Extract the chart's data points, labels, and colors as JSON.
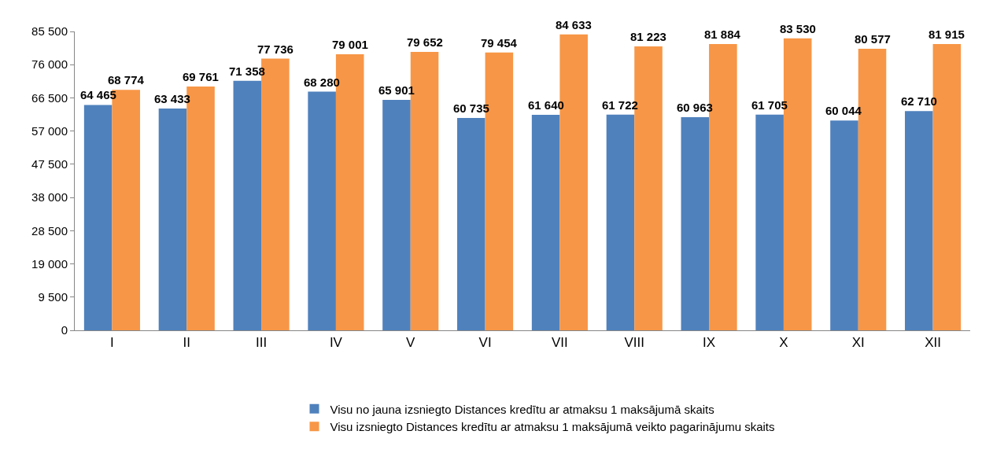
{
  "chart_data": {
    "type": "bar",
    "categories": [
      "I",
      "II",
      "III",
      "IV",
      "V",
      "VI",
      "VII",
      "VIII",
      "IX",
      "X",
      "XI",
      "XII"
    ],
    "series": [
      {
        "name": "Visu no jauna izsniegto Distances kredītu ar atmaksu 1 maksājumā skaits",
        "color": "#4f81bd",
        "values": [
          64465,
          63433,
          71358,
          68280,
          65901,
          60735,
          61640,
          61722,
          60963,
          61705,
          60044,
          62710
        ],
        "value_labels": [
          "64 465",
          "63 433",
          "71 358",
          "68 280",
          "65 901",
          "60 735",
          "61 640",
          "61 722",
          "60 963",
          "61 705",
          "60 044",
          "62 710"
        ]
      },
      {
        "name": "Visu izsniegto Distances kredītu ar atmaksu 1 maksājumā veikto pagarinājumu skaits",
        "color": "#f79646",
        "values": [
          68774,
          69761,
          77736,
          79001,
          79652,
          79454,
          84633,
          81223,
          81884,
          83530,
          80577,
          81915
        ],
        "value_labels": [
          "68 774",
          "69 761",
          "77 736",
          "79 001",
          "79 652",
          "79 454",
          "84 633",
          "81 223",
          "81 884",
          "83 530",
          "80 577",
          "81 915"
        ]
      }
    ],
    "ylim": [
      0,
      85500
    ],
    "yticks": [
      0,
      {
        "value": 9500,
        "label": "9 500"
      },
      {
        "value": 19000,
        "label": "19 000"
      },
      {
        "value": 28500,
        "label": "28 500"
      },
      {
        "value": 38000,
        "label": "38 000"
      },
      {
        "value": 47500,
        "label": "47 500"
      },
      {
        "value": 57000,
        "label": "57 000"
      },
      {
        "value": 66500,
        "label": "66 500"
      },
      {
        "value": 76000,
        "label": "76 000"
      },
      {
        "value": 85500,
        "label": "85 500"
      }
    ],
    "legend": "bottom"
  }
}
